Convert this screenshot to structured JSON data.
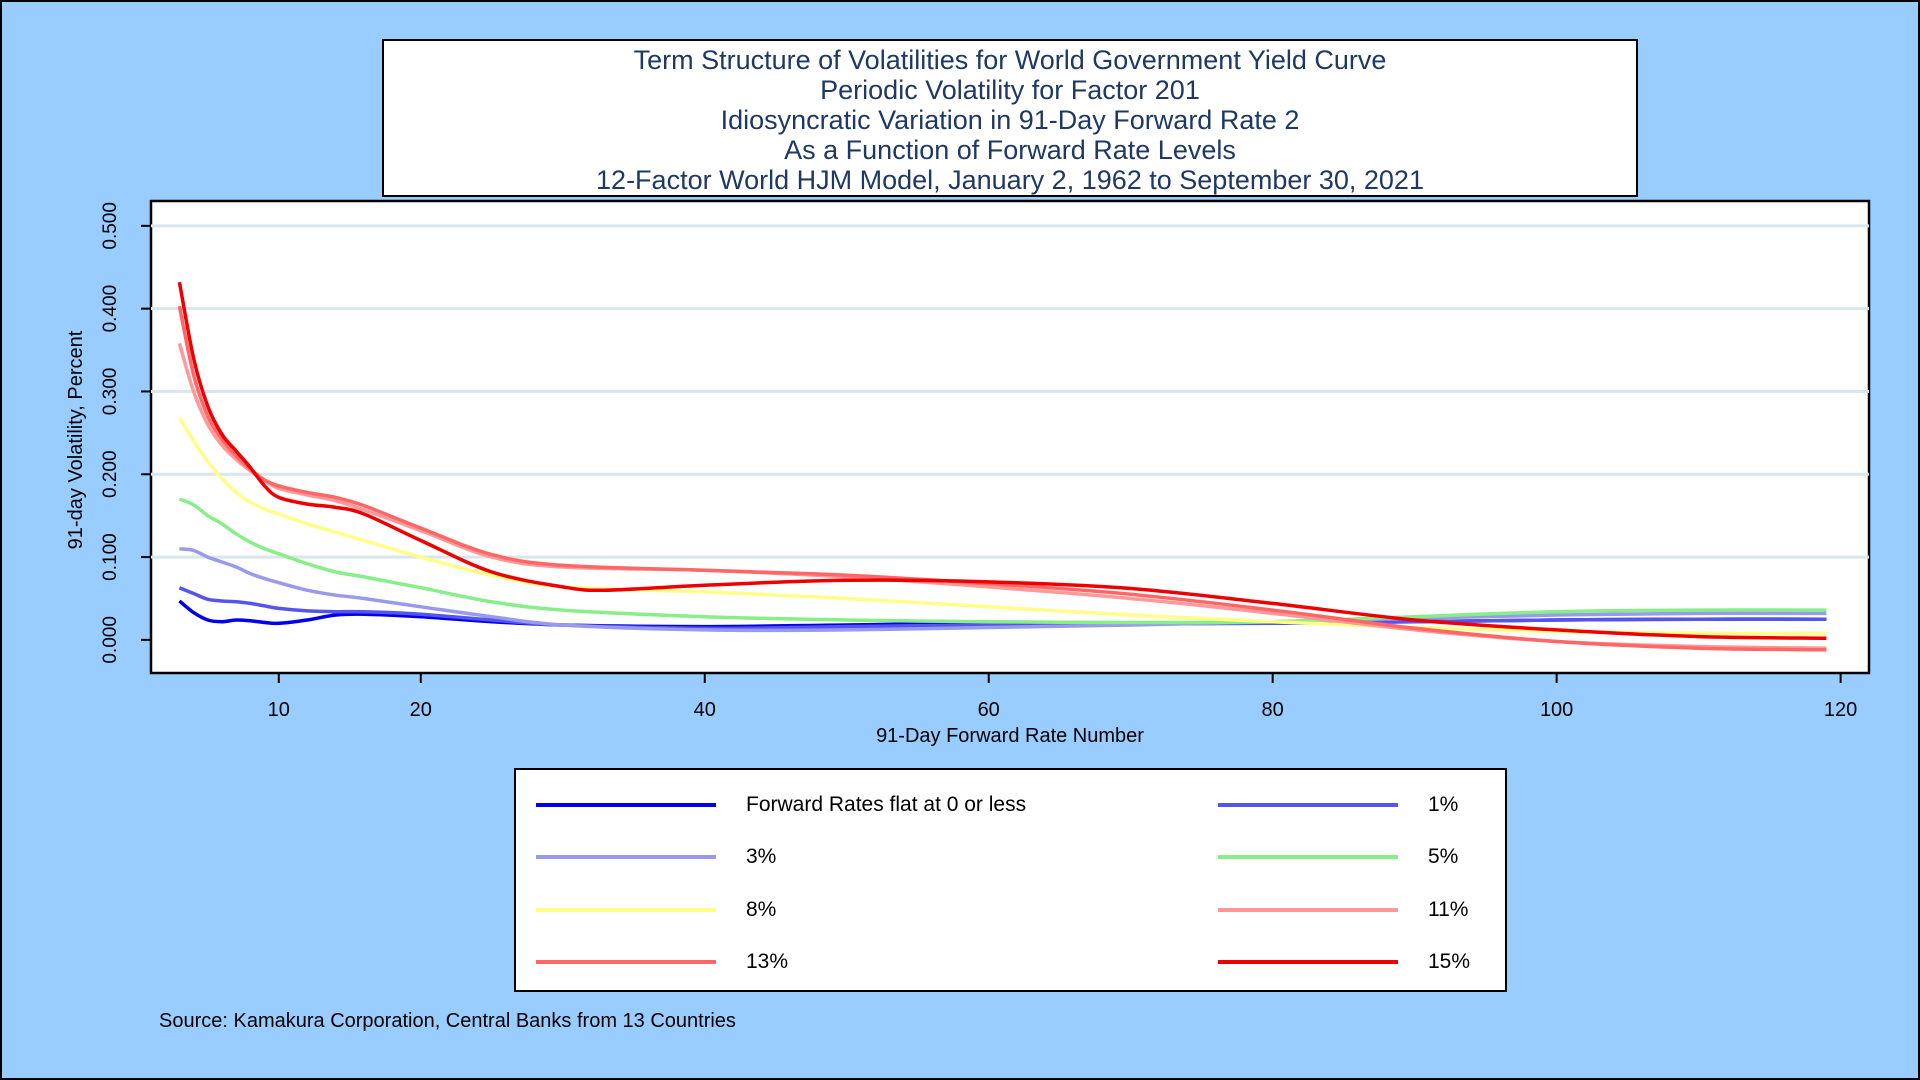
{
  "title_lines": [
    "Term Structure of Volatilities for World Government Yield Curve",
    "Periodic Volatility for Factor 201",
    "Idiosyncratic Variation in 91-Day Forward Rate 2",
    "As a Function of Forward Rate Levels",
    "12-Factor World HJM Model, January 2, 1962 to September 30, 2021"
  ],
  "source": "Source: Kamakura Corporation, Central Banks from 13 Countries",
  "chart_data": {
    "type": "line",
    "xlabel": "91-Day Forward Rate Number",
    "ylabel": "91-day Volatility, Percent",
    "xlim": [
      1,
      122
    ],
    "ylim": [
      -0.04,
      0.53
    ],
    "xticks": [
      10,
      20,
      40,
      60,
      80,
      100,
      120
    ],
    "yticks": [
      0.0,
      0.1,
      0.2,
      0.3,
      0.4,
      0.5
    ],
    "yticklabels": [
      "0.000",
      "0.100",
      "0.200",
      "0.300",
      "0.400",
      "0.500"
    ],
    "grid": "horizontal",
    "legend_position": "bottom",
    "series": [
      {
        "name": "Forward Rates flat at 0 or less",
        "color": "#0000ee",
        "x": [
          3,
          4,
          5,
          6,
          7,
          8,
          9,
          10,
          12,
          14,
          16,
          20,
          25,
          30,
          40,
          50,
          60,
          70,
          80,
          90,
          100,
          110,
          119
        ],
        "y": [
          0.047,
          0.033,
          0.024,
          0.022,
          0.024,
          0.023,
          0.021,
          0.02,
          0.024,
          0.03,
          0.031,
          0.028,
          0.022,
          0.018,
          0.016,
          0.018,
          0.02,
          0.02,
          0.02,
          0.022,
          0.024,
          0.025,
          0.025
        ]
      },
      {
        "name": "1%",
        "color": "#5555ee",
        "x": [
          3,
          4,
          5,
          6,
          7,
          8,
          9,
          10,
          12,
          14,
          16,
          20,
          25,
          30,
          40,
          50,
          60,
          70,
          80,
          90,
          100,
          110,
          119
        ],
        "y": [
          0.063,
          0.056,
          0.049,
          0.047,
          0.046,
          0.044,
          0.041,
          0.038,
          0.035,
          0.034,
          0.034,
          0.031,
          0.024,
          0.018,
          0.014,
          0.016,
          0.018,
          0.019,
          0.02,
          0.022,
          0.024,
          0.025,
          0.025
        ]
      },
      {
        "name": "3%",
        "color": "#9999ee",
        "x": [
          3,
          4,
          5,
          6,
          7,
          8,
          9,
          10,
          12,
          14,
          16,
          20,
          25,
          30,
          40,
          50,
          60,
          70,
          80,
          90,
          100,
          110,
          119
        ],
        "y": [
          0.11,
          0.108,
          0.1,
          0.094,
          0.088,
          0.08,
          0.074,
          0.069,
          0.06,
          0.054,
          0.05,
          0.04,
          0.028,
          0.018,
          0.012,
          0.012,
          0.015,
          0.018,
          0.022,
          0.026,
          0.03,
          0.032,
          0.032
        ]
      },
      {
        "name": "5%",
        "color": "#88ee88",
        "x": [
          3,
          4,
          5,
          6,
          7,
          8,
          9,
          10,
          12,
          14,
          16,
          20,
          25,
          30,
          40,
          50,
          60,
          70,
          80,
          90,
          100,
          110,
          119
        ],
        "y": [
          0.17,
          0.163,
          0.15,
          0.14,
          0.128,
          0.118,
          0.11,
          0.104,
          0.092,
          0.082,
          0.076,
          0.063,
          0.046,
          0.036,
          0.028,
          0.024,
          0.022,
          0.021,
          0.022,
          0.028,
          0.034,
          0.036,
          0.036
        ]
      },
      {
        "name": "8%",
        "color": "#ffff88",
        "x": [
          3,
          4,
          5,
          6,
          7,
          8,
          9,
          10,
          12,
          14,
          16,
          20,
          25,
          30,
          40,
          50,
          60,
          70,
          80,
          90,
          100,
          110,
          119
        ],
        "y": [
          0.268,
          0.24,
          0.215,
          0.195,
          0.178,
          0.166,
          0.158,
          0.152,
          0.14,
          0.13,
          0.12,
          0.1,
          0.078,
          0.064,
          0.058,
          0.05,
          0.04,
          0.03,
          0.022,
          0.015,
          0.01,
          0.008,
          0.008
        ]
      },
      {
        "name": "11%",
        "color": "#ff9999",
        "x": [
          3,
          4,
          5,
          6,
          7,
          8,
          9,
          10,
          12,
          14,
          16,
          20,
          25,
          30,
          40,
          50,
          60,
          70,
          80,
          90,
          100,
          110,
          119
        ],
        "y": [
          0.358,
          0.3,
          0.26,
          0.235,
          0.218,
          0.204,
          0.192,
          0.183,
          0.175,
          0.168,
          0.157,
          0.132,
          0.1,
          0.088,
          0.084,
          0.076,
          0.064,
          0.05,
          0.032,
          0.012,
          -0.002,
          -0.008,
          -0.01
        ]
      },
      {
        "name": "13%",
        "color": "#ff6666",
        "x": [
          3,
          4,
          5,
          6,
          7,
          8,
          9,
          10,
          12,
          14,
          16,
          20,
          25,
          30,
          40,
          50,
          60,
          70,
          80,
          90,
          100,
          110,
          119
        ],
        "y": [
          0.403,
          0.32,
          0.27,
          0.242,
          0.222,
          0.206,
          0.193,
          0.186,
          0.178,
          0.172,
          0.162,
          0.135,
          0.103,
          0.09,
          0.084,
          0.078,
          0.068,
          0.055,
          0.036,
          0.014,
          -0.002,
          -0.01,
          -0.012
        ]
      },
      {
        "name": "15%",
        "color": "#ee0000",
        "x": [
          3,
          4,
          5,
          6,
          7,
          8,
          9,
          10,
          12,
          14,
          16,
          20,
          25,
          30,
          33,
          40,
          50,
          60,
          70,
          80,
          90,
          100,
          110,
          119
        ],
        "y": [
          0.432,
          0.34,
          0.282,
          0.248,
          0.228,
          0.208,
          0.186,
          0.172,
          0.164,
          0.16,
          0.152,
          0.12,
          0.082,
          0.064,
          0.06,
          0.066,
          0.072,
          0.07,
          0.062,
          0.044,
          0.024,
          0.012,
          0.004,
          0.002
        ]
      }
    ]
  }
}
